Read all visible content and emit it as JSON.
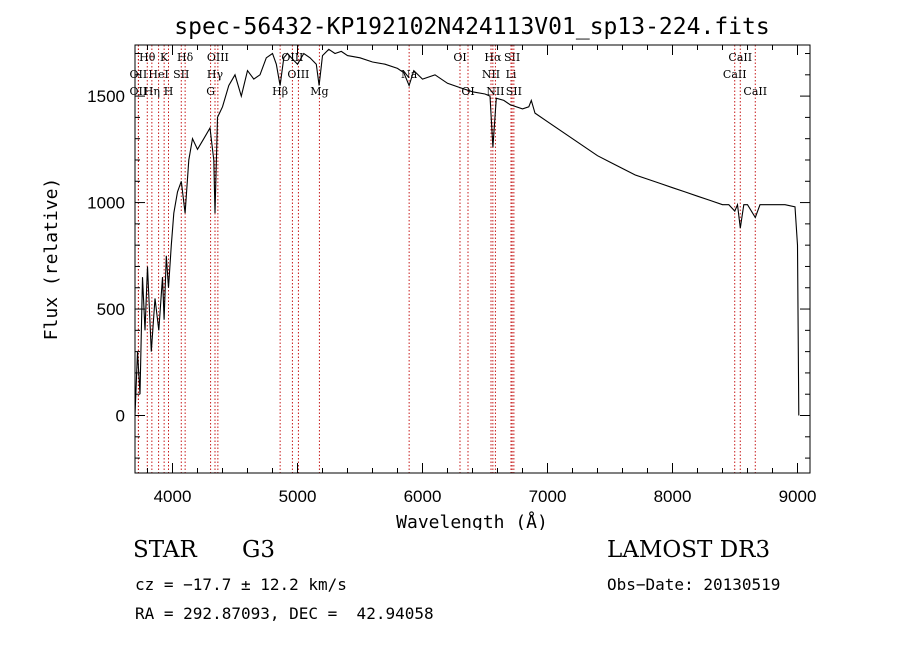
{
  "chart_data": {
    "type": "line",
    "title": "spec-56432-KP192102N424113V01_sp13-224.fits",
    "xlabel": "Wavelength (Å)",
    "ylabel": "Flux (relative)",
    "xlim": [
      3700,
      9100
    ],
    "ylim": [
      -270,
      1740
    ],
    "xticks": [
      4000,
      5000,
      6000,
      7000,
      8000,
      9000
    ],
    "yticks": [
      0,
      500,
      1000,
      1500
    ],
    "series": [
      {
        "name": "spectrum",
        "x": [
          3700,
          3720,
          3740,
          3760,
          3780,
          3800,
          3830,
          3860,
          3890,
          3920,
          3933,
          3950,
          3968,
          3990,
          4010,
          4040,
          4070,
          4101,
          4130,
          4160,
          4200,
          4250,
          4300,
          4330,
          4340,
          4360,
          4400,
          4450,
          4500,
          4550,
          4600,
          4650,
          4700,
          4750,
          4800,
          4830,
          4861,
          4890,
          4920,
          4950,
          5000,
          5050,
          5100,
          5150,
          5173,
          5200,
          5250,
          5300,
          5350,
          5400,
          5500,
          5600,
          5700,
          5800,
          5850,
          5893,
          5930,
          6000,
          6100,
          6200,
          6300,
          6400,
          6500,
          6540,
          6563,
          6590,
          6650,
          6700,
          6800,
          6850,
          6870,
          6900,
          7000,
          7100,
          7200,
          7300,
          7400,
          7500,
          7600,
          7700,
          7800,
          7900,
          8000,
          8100,
          8200,
          8300,
          8400,
          8450,
          8498,
          8520,
          8542,
          8570,
          8600,
          8662,
          8700,
          8800,
          8900,
          8980,
          9000,
          9010
        ],
        "values": [
          0,
          300,
          100,
          650,
          400,
          700,
          300,
          550,
          400,
          650,
          450,
          750,
          600,
          800,
          950,
          1050,
          1100,
          950,
          1200,
          1300,
          1250,
          1300,
          1350,
          1200,
          950,
          1400,
          1450,
          1550,
          1600,
          1500,
          1620,
          1580,
          1600,
          1680,
          1700,
          1650,
          1550,
          1680,
          1700,
          1680,
          1650,
          1700,
          1680,
          1650,
          1550,
          1690,
          1720,
          1700,
          1710,
          1690,
          1680,
          1660,
          1650,
          1630,
          1610,
          1550,
          1620,
          1580,
          1600,
          1560,
          1540,
          1520,
          1510,
          1500,
          1260,
          1490,
          1480,
          1460,
          1440,
          1450,
          1480,
          1420,
          1380,
          1340,
          1300,
          1260,
          1220,
          1190,
          1160,
          1130,
          1110,
          1090,
          1070,
          1050,
          1030,
          1010,
          990,
          990,
          960,
          990,
          880,
          990,
          990,
          930,
          990,
          990,
          990,
          980,
          800,
          0
        ]
      }
    ],
    "lines": [
      {
        "label": "Hθ",
        "x": 3798,
        "row": 0
      },
      {
        "label": "OII",
        "x": 3727,
        "row": 1
      },
      {
        "label": "OII",
        "x": 3727,
        "row": 2
      },
      {
        "label": "HeI",
        "x": 3889,
        "row": 1
      },
      {
        "label": "Hη",
        "x": 3835,
        "row": 2
      },
      {
        "label": "K",
        "x": 3933,
        "row": 0
      },
      {
        "label": "SII",
        "x": 4070,
        "row": 1
      },
      {
        "label": "H",
        "x": 3968,
        "row": 2
      },
      {
        "label": "Hδ",
        "x": 4101,
        "row": 0
      },
      {
        "label": "OIII",
        "x": 4363,
        "row": 0
      },
      {
        "label": "Hγ",
        "x": 4340,
        "row": 1
      },
      {
        "label": "G",
        "x": 4305,
        "row": 2
      },
      {
        "label": "OIII",
        "x": 4959,
        "row": 0
      },
      {
        "label": "OIII",
        "x": 5007,
        "row": 1
      },
      {
        "label": "Hβ",
        "x": 4861,
        "row": 2
      },
      {
        "label": "Mg",
        "x": 5175,
        "row": 2
      },
      {
        "label": "Na",
        "x": 5893,
        "row": 1
      },
      {
        "label": "OI",
        "x": 6300,
        "row": 0
      },
      {
        "label": "OI",
        "x": 6364,
        "row": 2
      },
      {
        "label": "Hα",
        "x": 6563,
        "row": 0
      },
      {
        "label": "SII",
        "x": 6717,
        "row": 0
      },
      {
        "label": "NII",
        "x": 6548,
        "row": 1
      },
      {
        "label": "Li",
        "x": 6708,
        "row": 1
      },
      {
        "label": "NII",
        "x": 6583,
        "row": 2
      },
      {
        "label": "SII",
        "x": 6731,
        "row": 2
      },
      {
        "label": "CaII",
        "x": 8542,
        "row": 0
      },
      {
        "label": "CaII",
        "x": 8498,
        "row": 1
      },
      {
        "label": "CaII",
        "x": 8662,
        "row": 2
      }
    ]
  },
  "info": {
    "class": "STAR",
    "subclass": "G3",
    "survey": "LAMOST DR3",
    "cz": "cz = −17.7 ± 12.2 km/s",
    "obs_date": "Obs−Date: 20130519",
    "radec": "RA = 292.87093, DEC =  42.94058"
  },
  "colors": {
    "line": "#000000",
    "marker": "#c00000",
    "axis": "#000000"
  }
}
